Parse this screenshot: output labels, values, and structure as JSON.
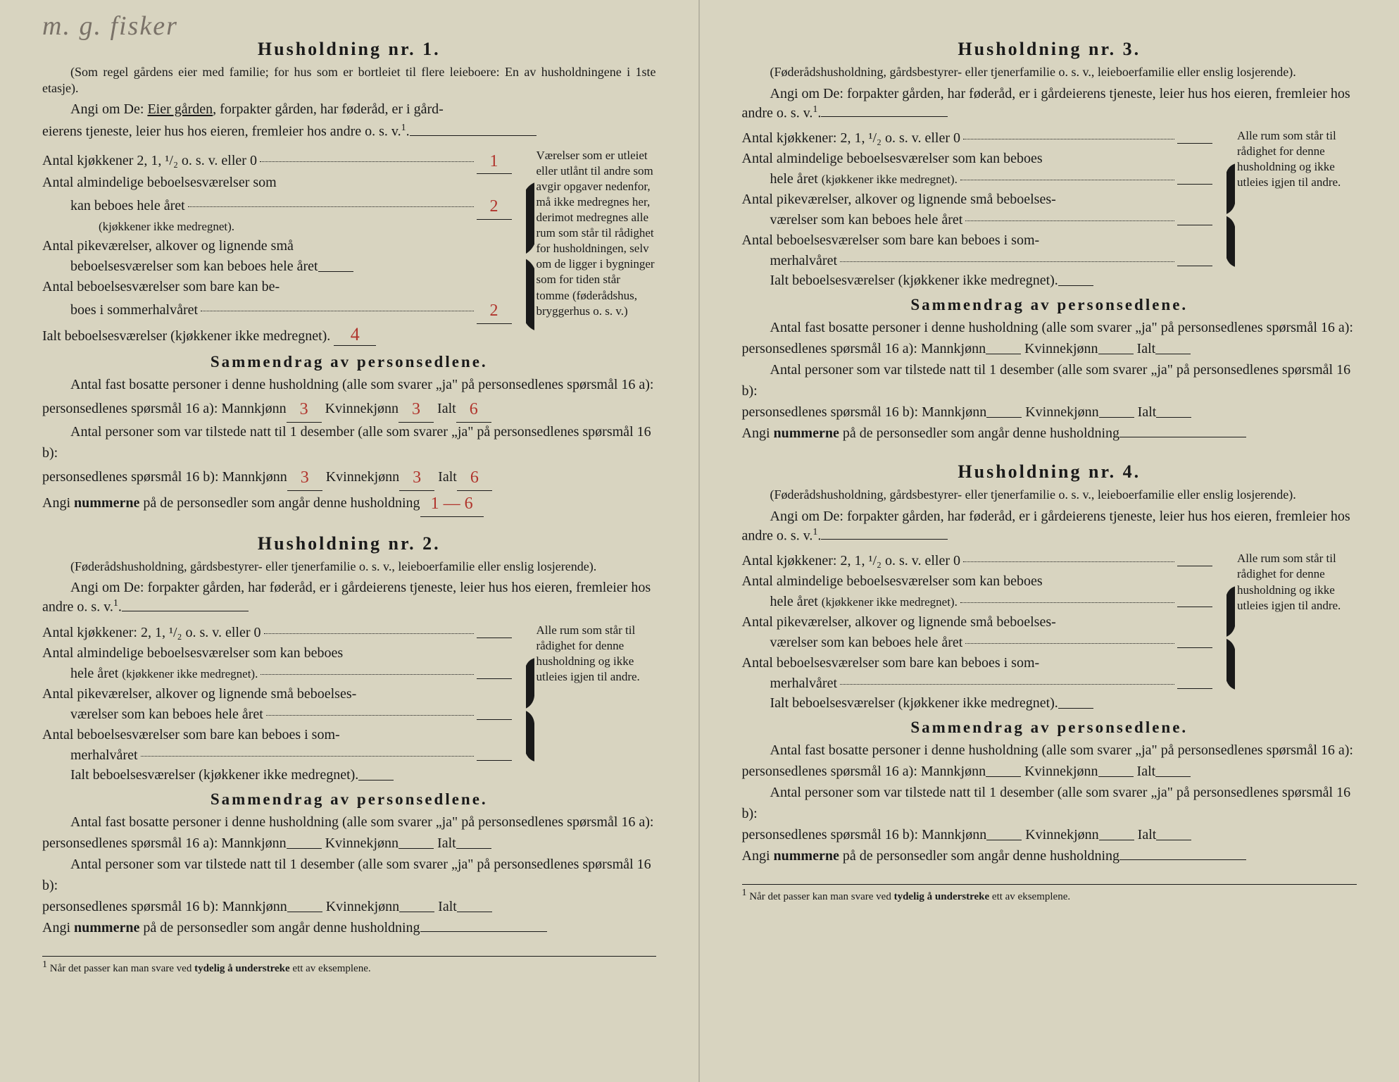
{
  "handwritten_annotation": "m. g. fisker",
  "colors": {
    "paper": "#d8d4c0",
    "ink": "#1a1a1a",
    "handwriting_red": "#b0342c",
    "handwriting_grey": "#7a7268"
  },
  "households": [
    {
      "title": "Husholdning nr. 1.",
      "subtitle": "(Som regel gårdens eier med familie; for hus som er bortleiet til flere leieboere: En av husholdningene i 1ste etasje).",
      "angi_prefix": "Angi om De:",
      "angi_text": "Eier gården, forpakter gården, har føderåd, er i gård-eierens tjeneste, leier hus hos eieren, fremleier hos andre o. s. v.",
      "angi_underlined": "Eier gården",
      "angi_suffix": "¹.",
      "kjokkener_label": "Antal kjøkkener 2, 1, ¹/₂ o. s. v. eller 0",
      "kjokkener_value": "1",
      "rows": [
        {
          "label": "Antal almindelige beboelsesværelser som kan beboes hele året",
          "note": "(kjøkkener ikke medregnet).",
          "value": "2"
        },
        {
          "label": "Antal pikeværelser, alkover og lignende små beboelsesværelser som kan beboes hele året",
          "value": ""
        },
        {
          "label": "Antal beboelsesværelser som bare kan beboes i sommerhalvåret",
          "value": "2"
        }
      ],
      "total_label": "Ialt beboelsesværelser (kjøkkener ikke medregnet).",
      "total_value": "4",
      "sidenote": "Værelser som er utleiet eller utlånt til andre som avgir opgaver nedenfor, må ikke medregnes her, derimot medregnes alle rum som står til rådighet for husholdningen, selv om de ligger i bygninger som for tiden står tomme (føderådshus, bryggerhus o. s. v.)",
      "sammendrag_title": "Sammendrag av personsedlene.",
      "line_a": "Antal fast bosatte personer i denne husholdning (alle som svarer „ja\" på personsedlenes spørsmål 16 a):",
      "line_b": "Antal personer som var tilstede natt til 1 desember (alle som svarer „ja\" på personsedlenes spørsmål 16 b):",
      "mann_label": "Mannkjønn",
      "kvinne_label": "Kvinnekjønn",
      "ialt_label": "Ialt",
      "a_mann": "3",
      "a_kvinne": "3",
      "a_ialt": "6",
      "b_mann": "3",
      "b_kvinne": "3",
      "b_ialt": "6",
      "nummer_label": "Angi nummerne på de personsedler som angår denne husholdning",
      "nummer_value": "1 — 6"
    },
    {
      "title": "Husholdning nr. 2.",
      "subtitle": "(Føderådshusholdning, gårdsbestyrer- eller tjenerfamilie o. s. v., leieboerfamilie eller enslig losjerende).",
      "angi_prefix": "Angi om De:",
      "angi_text": "forpakter gården, har føderåd, er i gårdeierens tjeneste, leier hus hos eieren, fremleier hos andre o. s. v.",
      "angi_suffix": "¹.",
      "kjokkener_label": "Antal kjøkkener: 2, 1, ¹/₂ o. s. v. eller 0",
      "kjokkener_value": "",
      "rows": [
        {
          "label": "Antal almindelige beboelsesværelser som kan beboes hele året",
          "note": "(kjøkkener ikke medregnet).",
          "value": ""
        },
        {
          "label": "Antal pikeværelser, alkover og lignende små beboelsesværelser som kan beboes hele året",
          "value": ""
        },
        {
          "label": "Antal beboelsesværelser som bare kan beboes i sommerhalvåret",
          "value": ""
        }
      ],
      "total_label": "Ialt beboelsesværelser (kjøkkener ikke medregnet).",
      "total_value": "",
      "sidenote": "Alle rum som står til rådighet for denne husholdning og ikke utleies igjen til andre.",
      "sammendrag_title": "Sammendrag av personsedlene.",
      "line_a": "Antal fast bosatte personer i denne husholdning (alle som svarer „ja\" på personsedlenes spørsmål 16 a):",
      "line_b": "Antal personer som var tilstede natt til 1 desember (alle som svarer „ja\" på personsedlenes spørsmål 16 b):",
      "mann_label": "Mannkjønn",
      "kvinne_label": "Kvinnekjønn",
      "ialt_label": "Ialt",
      "a_mann": "",
      "a_kvinne": "",
      "a_ialt": "",
      "b_mann": "",
      "b_kvinne": "",
      "b_ialt": "",
      "nummer_label": "Angi nummerne på de personsedler som angår denne husholdning",
      "nummer_value": ""
    },
    {
      "title": "Husholdning nr. 3.",
      "subtitle": "(Føderådshusholdning, gårdsbestyrer- eller tjenerfamilie o. s. v., leieboerfamilie eller enslig losjerende).",
      "angi_prefix": "Angi om De:",
      "angi_text": "forpakter gården, har føderåd, er i gårdeierens tjeneste, leier hus hos eieren, fremleier hos andre o. s. v.",
      "angi_suffix": "¹.",
      "kjokkener_label": "Antal kjøkkener: 2, 1, ¹/₂ o. s. v. eller 0",
      "kjokkener_value": "",
      "rows": [
        {
          "label": "Antal almindelige beboelsesværelser som kan beboes hele året",
          "note": "(kjøkkener ikke medregnet).",
          "value": ""
        },
        {
          "label": "Antal pikeværelser, alkover og lignende små beboelsesværelser som kan beboes hele året",
          "value": ""
        },
        {
          "label": "Antal beboelsesværelser som bare kan beboes i sommerhalvåret",
          "value": ""
        }
      ],
      "total_label": "Ialt beboelsesværelser (kjøkkener ikke medregnet).",
      "total_value": "",
      "sidenote": "Alle rum som står til rådighet for denne husholdning og ikke utleies igjen til andre.",
      "sammendrag_title": "Sammendrag av personsedlene.",
      "line_a": "Antal fast bosatte personer i denne husholdning (alle som svarer „ja\" på personsedlenes spørsmål 16 a):",
      "line_b": "Antal personer som var tilstede natt til 1 desember (alle som svarer „ja\" på personsedlenes spørsmål 16 b):",
      "mann_label": "Mannkjønn",
      "kvinne_label": "Kvinnekjønn",
      "ialt_label": "Ialt",
      "a_mann": "",
      "a_kvinne": "",
      "a_ialt": "",
      "b_mann": "",
      "b_kvinne": "",
      "b_ialt": "",
      "nummer_label": "Angi nummerne på de personsedler som angår denne husholdning",
      "nummer_value": ""
    },
    {
      "title": "Husholdning nr. 4.",
      "subtitle": "(Føderådshusholdning, gårdsbestyrer- eller tjenerfamilie o. s. v., leieboerfamilie eller enslig losjerende).",
      "angi_prefix": "Angi om De:",
      "angi_text": "forpakter gården, har føderåd, er i gårdeierens tjeneste, leier hus hos eieren, fremleier hos andre o. s. v.",
      "angi_suffix": "¹.",
      "kjokkener_label": "Antal kjøkkener: 2, 1, ¹/₂ o. s. v. eller 0",
      "kjokkener_value": "",
      "rows": [
        {
          "label": "Antal almindelige beboelsesværelser som kan beboes hele året",
          "note": "(kjøkkener ikke medregnet).",
          "value": ""
        },
        {
          "label": "Antal pikeværelser, alkover og lignende små beboelsesværelser som kan beboes hele året",
          "value": ""
        },
        {
          "label": "Antal beboelsesværelser som bare kan beboes i sommerhalvåret",
          "value": ""
        }
      ],
      "total_label": "Ialt beboelsesværelser (kjøkkener ikke medregnet).",
      "total_value": "",
      "sidenote": "Alle rum som står til rådighet for denne husholdning og ikke utleies igjen til andre.",
      "sammendrag_title": "Sammendrag av personsedlene.",
      "line_a": "Antal fast bosatte personer i denne husholdning (alle som svarer „ja\" på personsedlenes spørsmål 16 a):",
      "line_b": "Antal personer som var tilstede natt til 1 desember (alle som svarer „ja\" på personsedlenes spørsmål 16 b):",
      "mann_label": "Mannkjønn",
      "kvinne_label": "Kvinnekjønn",
      "ialt_label": "Ialt",
      "a_mann": "",
      "a_kvinne": "",
      "a_ialt": "",
      "b_mann": "",
      "b_kvinne": "",
      "b_ialt": "",
      "nummer_label": "Angi nummerne på de personsedler som angår denne husholdning",
      "nummer_value": ""
    }
  ],
  "footnote": "¹ Når det passer kan man svare ved tydelig å understreke ett av eksemplene.",
  "footnote_bold": "tydelig å understreke"
}
